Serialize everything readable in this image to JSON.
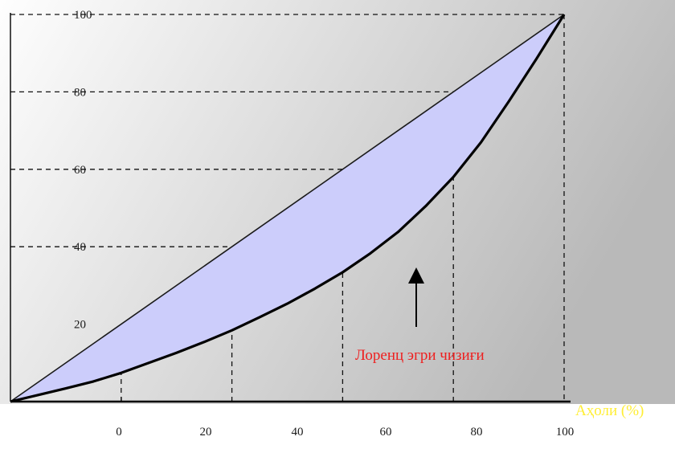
{
  "chart_data": {
    "type": "line",
    "title": "",
    "xlabel": "Аҳоли (%)",
    "ylabel": "",
    "xlim": [
      0,
      100
    ],
    "ylim": [
      0,
      100
    ],
    "grid": "dashed-guides",
    "x_tick_labels": [
      "0",
      "20",
      "40",
      "60",
      "80",
      "100"
    ],
    "y_tick_labels": [
      "20",
      "40",
      "60",
      "80",
      "100"
    ],
    "y_tick_values": [
      20,
      40,
      60,
      80,
      100
    ],
    "equality_line": {
      "x": [
        0,
        100
      ],
      "y": [
        0,
        100
      ]
    },
    "lorenz_curve": {
      "x": [
        0,
        5,
        10,
        15,
        20,
        25,
        30,
        35,
        40,
        45,
        50,
        55,
        60,
        65,
        70,
        75,
        80,
        85,
        90,
        95,
        100
      ],
      "y": [
        0,
        1.7,
        3.4,
        5.2,
        7.4,
        10,
        12.6,
        15.4,
        18.4,
        21.8,
        25.3,
        29.2,
        33.4,
        38.3,
        43.8,
        50.5,
        58,
        67,
        77.5,
        88.5,
        100
      ]
    },
    "annotation": "Лоренц эгри чизиғи",
    "colors": {
      "fill": "#cccdfb",
      "equality_line": "#1a1a1a",
      "lorenz_line": "#000000",
      "annotation": "#ee1f1f",
      "xlabel": "#ffee33",
      "guides": "#111111",
      "background_light": "#fefefe",
      "background_dark": "#b9b9b9"
    }
  }
}
